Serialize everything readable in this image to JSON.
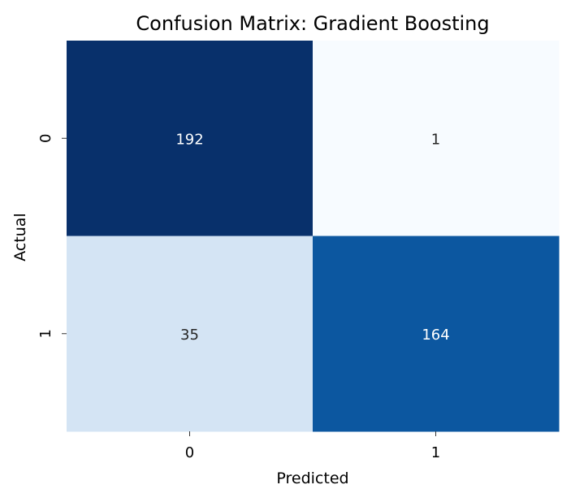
{
  "chart_data": {
    "type": "heatmap",
    "title": "Confusion Matrix: Gradient Boosting",
    "xlabel": "Predicted",
    "ylabel": "Actual",
    "x_categories": [
      "0",
      "1"
    ],
    "y_categories": [
      "0",
      "1"
    ],
    "values": [
      [
        192,
        1
      ],
      [
        35,
        164
      ]
    ],
    "colormap": "Blues",
    "colorbar": false,
    "annotations": true,
    "colors": {
      "low": "#f7fbff",
      "mid_light": "#d6e6f4",
      "mid_dark": "#0b55a1",
      "high": "#08306b",
      "annotation_light_text": "#ffffff",
      "annotation_dark_text": "#262626"
    }
  }
}
